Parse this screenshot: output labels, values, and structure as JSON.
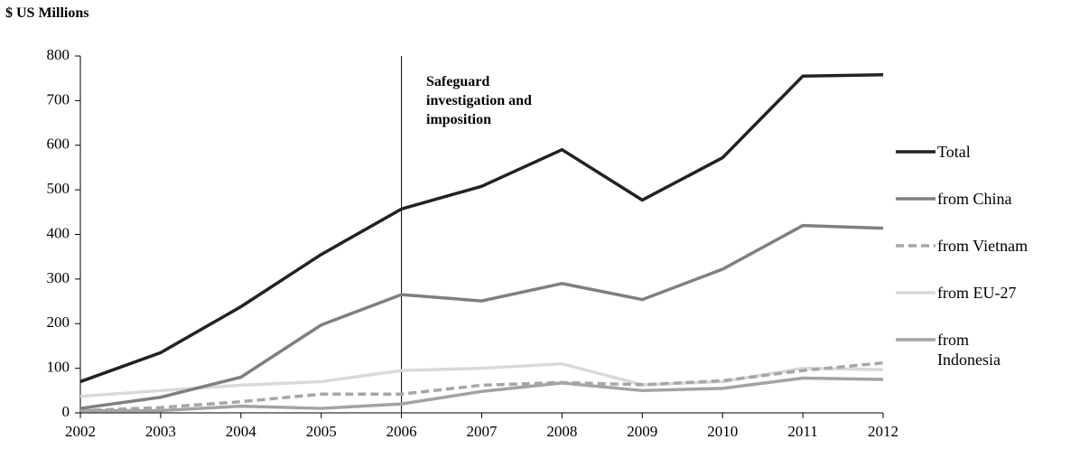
{
  "chart_data": {
    "type": "line",
    "y_label": "$ US Millions",
    "annotation": {
      "text": "Safeguard investigation and imposition",
      "x": 2006
    },
    "x": [
      2002,
      2003,
      2004,
      2005,
      2006,
      2007,
      2008,
      2009,
      2010,
      2011,
      2012
    ],
    "series": [
      {
        "name": "Total",
        "color": "#222222",
        "values": [
          70,
          135,
          238,
          355,
          457,
          508,
          590,
          477,
          572,
          755,
          758
        ]
      },
      {
        "name": "from China",
        "color": "#7f7f7f",
        "values": [
          10,
          35,
          80,
          197,
          265,
          251,
          290,
          254,
          322,
          420,
          414
        ]
      },
      {
        "name": "from Vietnam",
        "color": "#a6a6a6",
        "dashed": true,
        "values": [
          5,
          12,
          25,
          42,
          42,
          62,
          68,
          63,
          72,
          95,
          112
        ]
      },
      {
        "name": "from EU-27",
        "color": "#d9d9d9",
        "values": [
          37,
          50,
          62,
          70,
          95,
          100,
          110,
          63,
          70,
          100,
          97
        ]
      },
      {
        "name": "from Indonesia",
        "color": "#a3a3a3",
        "values": [
          5,
          5,
          15,
          10,
          20,
          48,
          67,
          50,
          55,
          78,
          75
        ]
      }
    ],
    "xlim": [
      2002,
      2012
    ],
    "xticks": [
      2002,
      2003,
      2004,
      2005,
      2006,
      2007,
      2008,
      2009,
      2010,
      2011,
      2012
    ],
    "ylim": [
      0,
      800
    ],
    "yticks": [
      0,
      100,
      200,
      300,
      400,
      500,
      600,
      700,
      800
    ],
    "grid": false
  }
}
